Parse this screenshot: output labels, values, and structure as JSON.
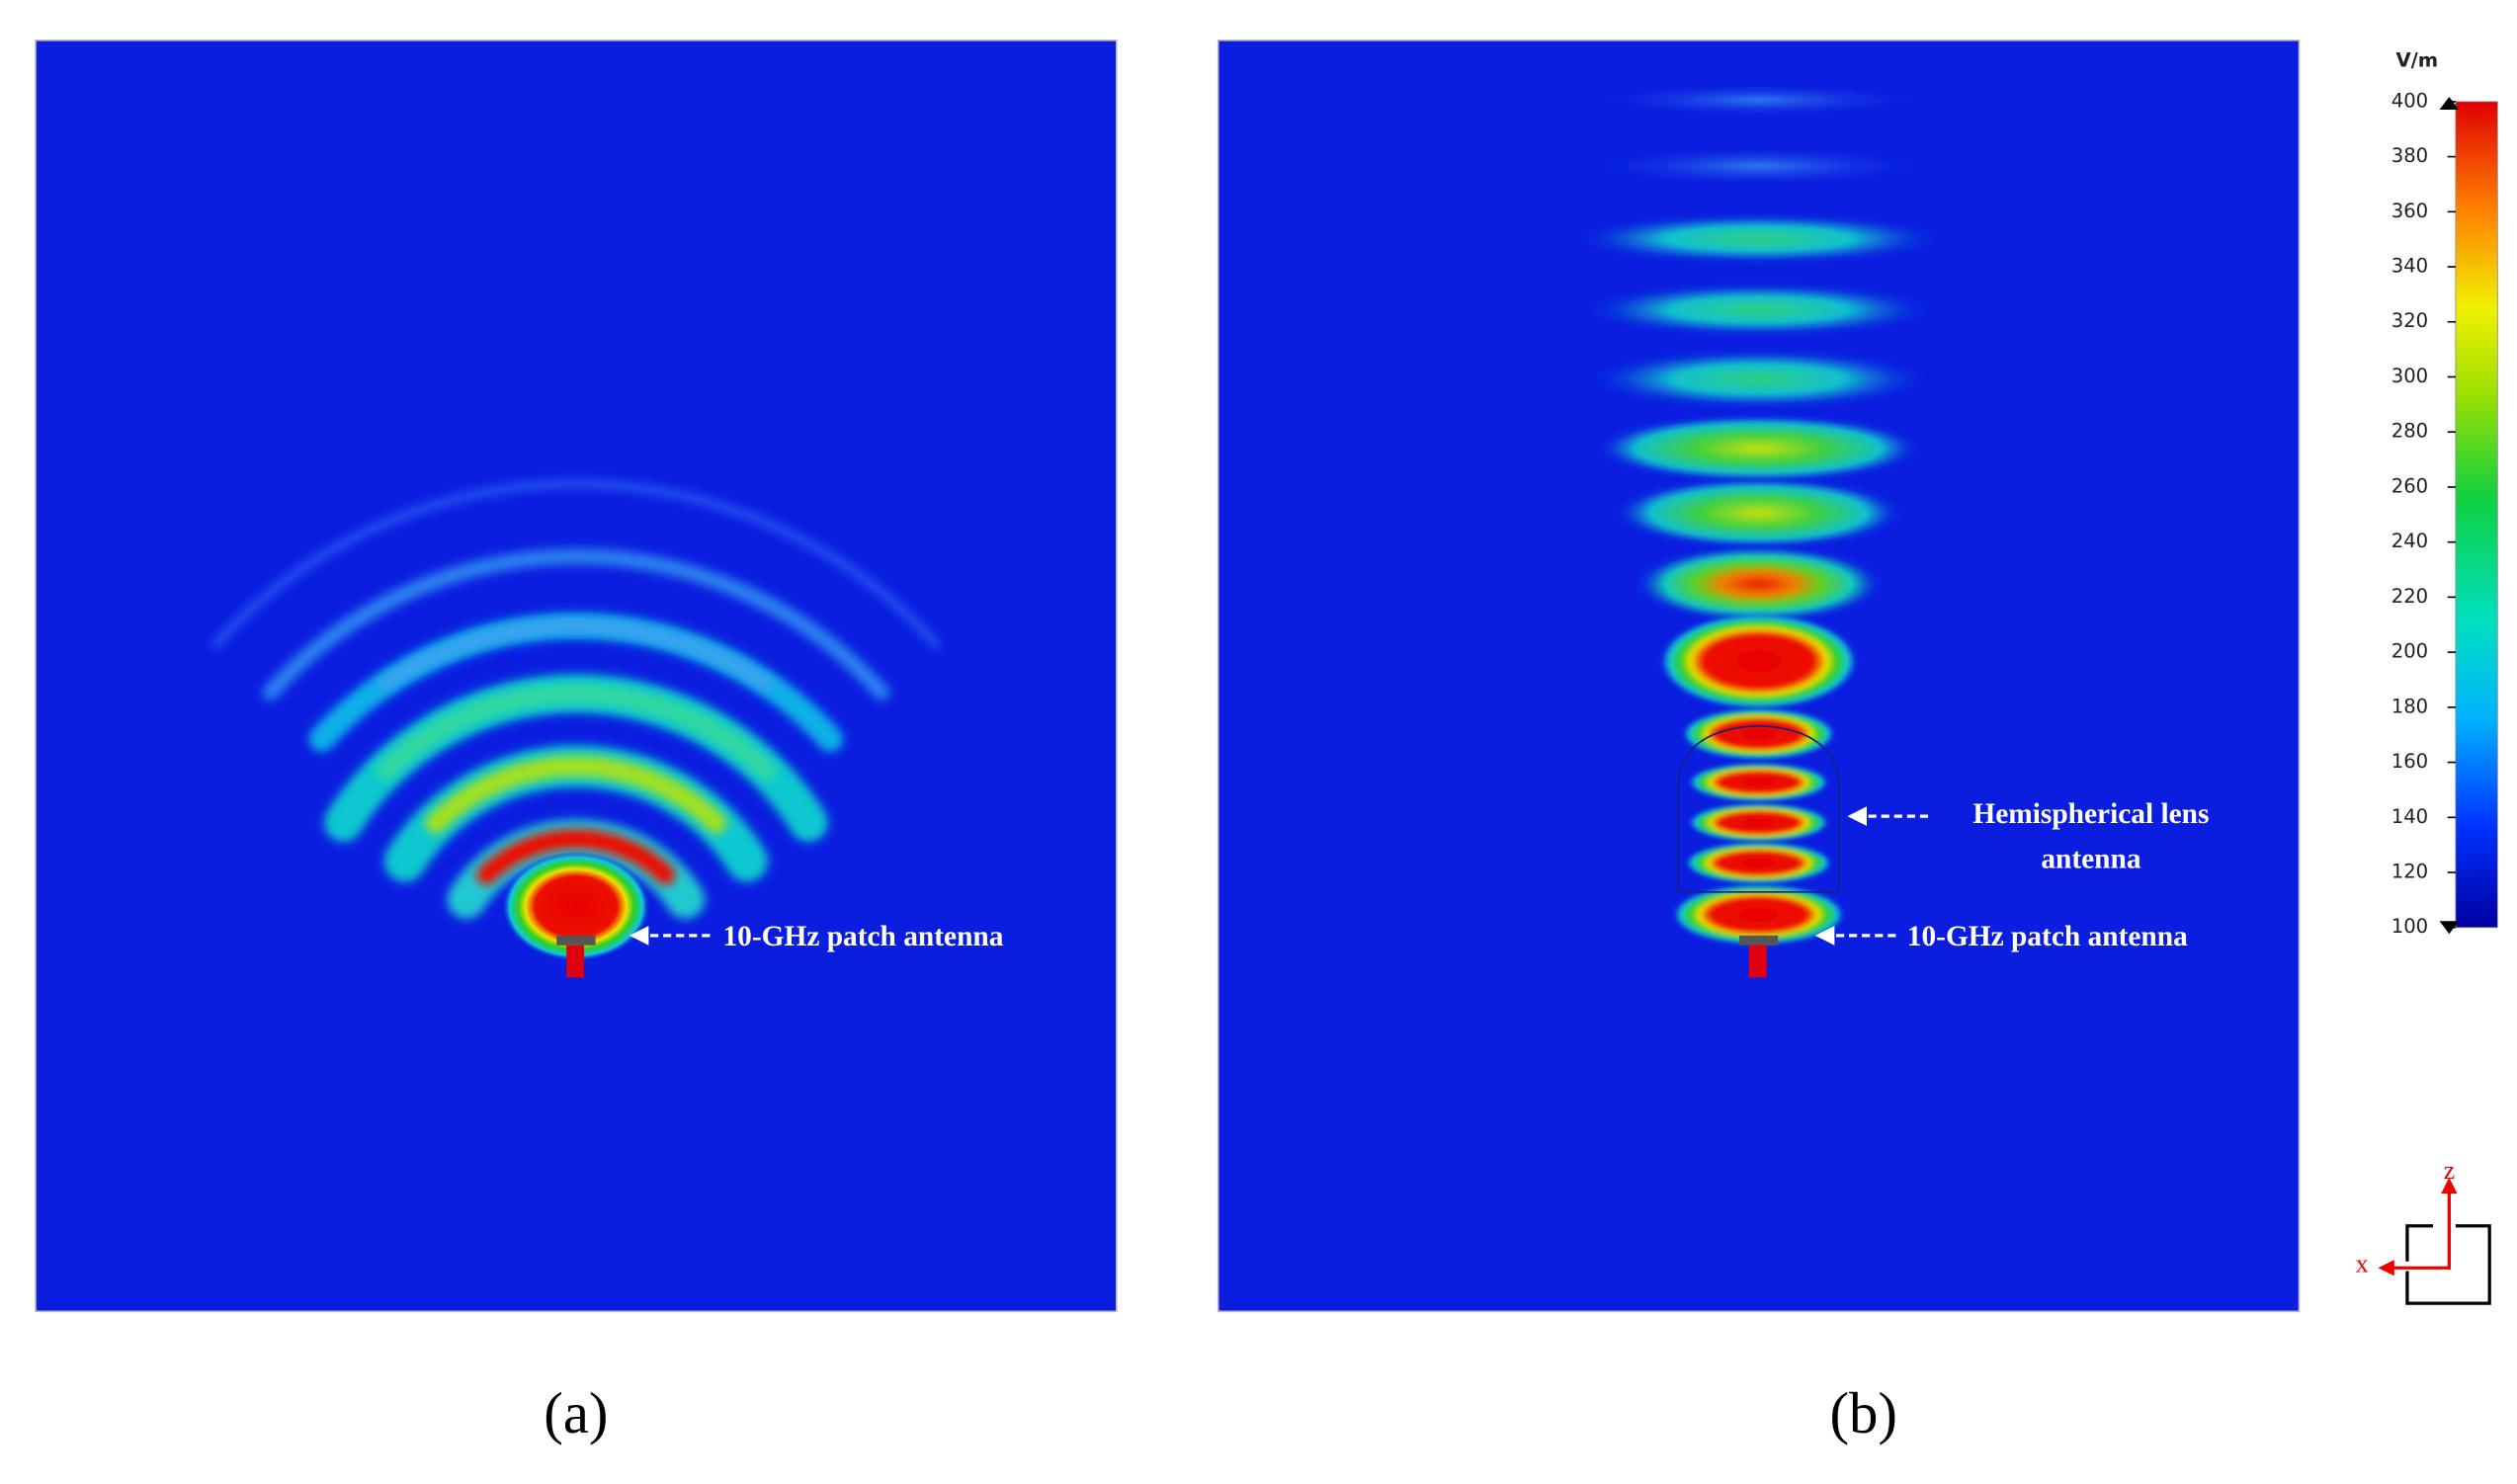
{
  "panels": [
    {
      "label": "(a)",
      "annotations": [
        [
          "10-GHz patch antenna"
        ]
      ]
    },
    {
      "label": "(b)",
      "annotations": [
        [
          "Hemispherical lens",
          "antenna"
        ],
        [
          "10-GHz patch antenna"
        ]
      ]
    }
  ],
  "colorbar": {
    "unit": "V/m",
    "range": [
      100,
      400
    ],
    "ticks": [
      100,
      120,
      140,
      160,
      180,
      200,
      220,
      240,
      260,
      280,
      300,
      320,
      340,
      360,
      380,
      400
    ]
  },
  "axes": {
    "vertical": "z",
    "horizontal": "x"
  }
}
